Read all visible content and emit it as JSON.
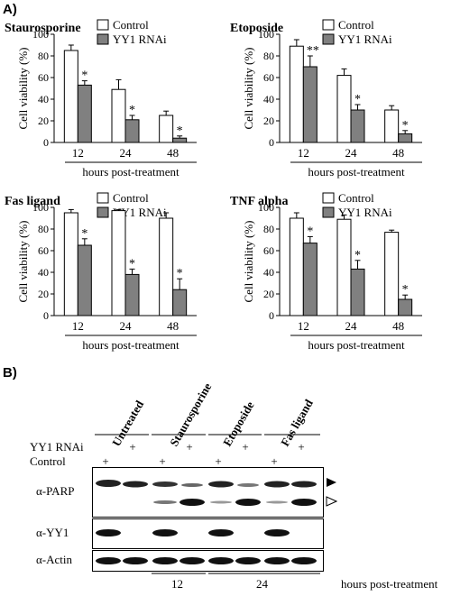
{
  "panel_a_label": "A)",
  "panel_b_label": "B)",
  "chart_data": [
    {
      "type": "bar",
      "title": "Staurosporine",
      "categories": [
        "12",
        "24",
        "48"
      ],
      "xlabel": "hours post-treatment",
      "ylabel": "Cell viability (%)",
      "ylim": [
        0,
        100
      ],
      "yticks": [
        0,
        20,
        40,
        60,
        80,
        100
      ],
      "legend": "top-right",
      "series": [
        {
          "name": "Control",
          "values": [
            85,
            49,
            25
          ],
          "errors": [
            5,
            9,
            4
          ]
        },
        {
          "name": "YY1 RNAi",
          "values": [
            53,
            21,
            4
          ],
          "errors": [
            4,
            4,
            2
          ]
        }
      ],
      "annotations": [
        {
          "series": 1,
          "index": 0,
          "text": "*"
        },
        {
          "series": 1,
          "index": 1,
          "text": "*"
        },
        {
          "series": 1,
          "index": 2,
          "text": "*"
        }
      ]
    },
    {
      "type": "bar",
      "title": "Etoposide",
      "categories": [
        "12",
        "24",
        "48"
      ],
      "xlabel": "hours post-treatment",
      "ylabel": "Cell viability (%)",
      "ylim": [
        0,
        100
      ],
      "yticks": [
        0,
        20,
        40,
        60,
        80,
        100
      ],
      "legend": "top-right",
      "series": [
        {
          "name": "Control",
          "values": [
            89,
            62,
            30
          ],
          "errors": [
            6,
            6,
            4
          ]
        },
        {
          "name": "YY1 RNAi",
          "values": [
            70,
            30,
            8
          ],
          "errors": [
            10,
            5,
            3
          ]
        }
      ],
      "annotations": [
        {
          "series": 1,
          "index": 0,
          "text": "**"
        },
        {
          "series": 1,
          "index": 1,
          "text": "*"
        },
        {
          "series": 1,
          "index": 2,
          "text": "*"
        }
      ]
    },
    {
      "type": "bar",
      "title": "Fas ligand",
      "categories": [
        "12",
        "24",
        "48"
      ],
      "xlabel": "hours post-treatment",
      "ylabel": "Cell viability (%)",
      "ylim": [
        0,
        100
      ],
      "yticks": [
        0,
        20,
        40,
        60,
        80,
        100
      ],
      "legend": "top-right",
      "series": [
        {
          "name": "Control",
          "values": [
            95,
            97,
            90
          ],
          "errors": [
            3,
            1,
            5
          ]
        },
        {
          "name": "YY1 RNAi",
          "values": [
            65,
            38,
            24
          ],
          "errors": [
            6,
            5,
            10
          ]
        }
      ],
      "annotations": [
        {
          "series": 1,
          "index": 0,
          "text": "*"
        },
        {
          "series": 1,
          "index": 1,
          "text": "*"
        },
        {
          "series": 1,
          "index": 2,
          "text": "*"
        }
      ]
    },
    {
      "type": "bar",
      "title": "TNF alpha",
      "categories": [
        "12",
        "24",
        "48"
      ],
      "xlabel": "hours post-treatment",
      "ylabel": "Cell viability (%)",
      "ylim": [
        0,
        100
      ],
      "yticks": [
        0,
        20,
        40,
        60,
        80,
        100
      ],
      "legend": "top-right",
      "series": [
        {
          "name": "Control",
          "values": [
            90,
            89,
            77
          ],
          "errors": [
            5,
            4,
            2
          ]
        },
        {
          "name": "YY1 RNAi",
          "values": [
            67,
            43,
            15
          ],
          "errors": [
            6,
            8,
            4
          ]
        }
      ],
      "annotations": [
        {
          "series": 1,
          "index": 0,
          "text": "*"
        },
        {
          "series": 1,
          "index": 1,
          "text": "*"
        },
        {
          "series": 1,
          "index": 2,
          "text": "*"
        }
      ]
    }
  ],
  "colors": {
    "control": "#ffffff",
    "yy1_rnai": "#808080",
    "bar_stroke": "#000000"
  },
  "blot": {
    "lane_groups": [
      "Untreated",
      "Staurosporine",
      "Etoposide",
      "Fas ligand"
    ],
    "row_labels": {
      "yy1_rnai": "YY1 RNAi",
      "control": "Control"
    },
    "yy1_rnai_signs": [
      "",
      "+",
      "",
      "+",
      "",
      "+",
      "",
      "+"
    ],
    "control_signs": [
      "+",
      "",
      "+",
      "",
      "+",
      "",
      "+",
      ""
    ],
    "panels": [
      "α-PARP",
      "α-YY1",
      "α-Actin"
    ],
    "time_labels": [
      "12",
      "24"
    ],
    "time_caption": "hours post-treatment",
    "arrow_markers": [
      "full-length-arrow-icon",
      "cleaved-arrow-icon"
    ]
  }
}
